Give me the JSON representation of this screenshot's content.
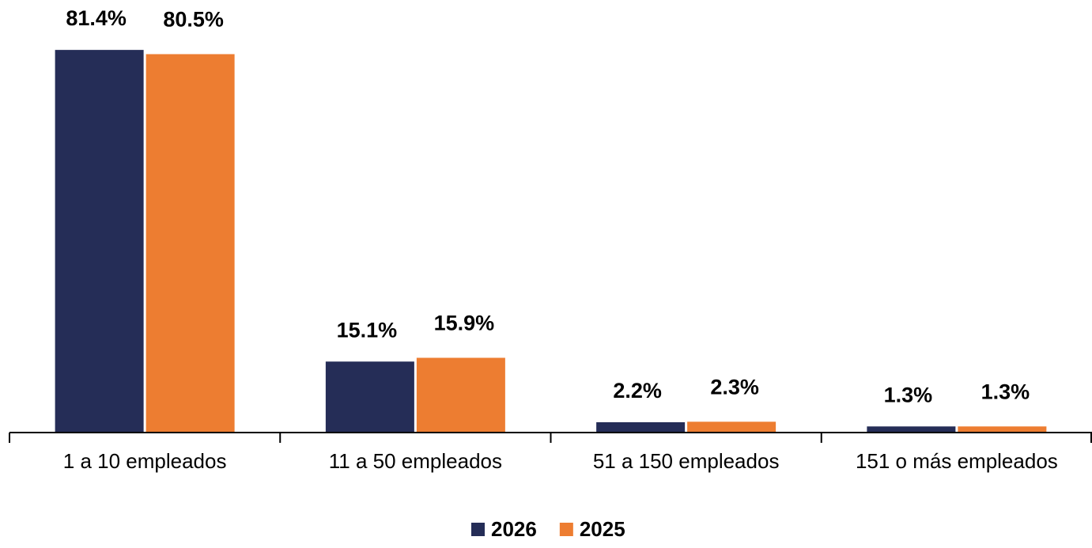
{
  "chart_data": {
    "type": "bar",
    "categories": [
      "1 a 10 empleados",
      "11 a 50 empleados",
      "51 a 150 empleados",
      "151 o más empleados"
    ],
    "series": [
      {
        "name": "2026",
        "color": "#252d57",
        "values": [
          81.4,
          15.1,
          2.2,
          1.3
        ],
        "value_labels": [
          "81.4%",
          "15.1%",
          "2.2%",
          "1.3%"
        ]
      },
      {
        "name": "2025",
        "color": "#ed7d31",
        "values": [
          80.5,
          15.9,
          2.3,
          1.3
        ],
        "value_labels": [
          "80.5%",
          "15.9%",
          "2.3%",
          "1.3%"
        ]
      }
    ],
    "ylim": [
      0,
      90
    ],
    "legend": "bottom"
  }
}
